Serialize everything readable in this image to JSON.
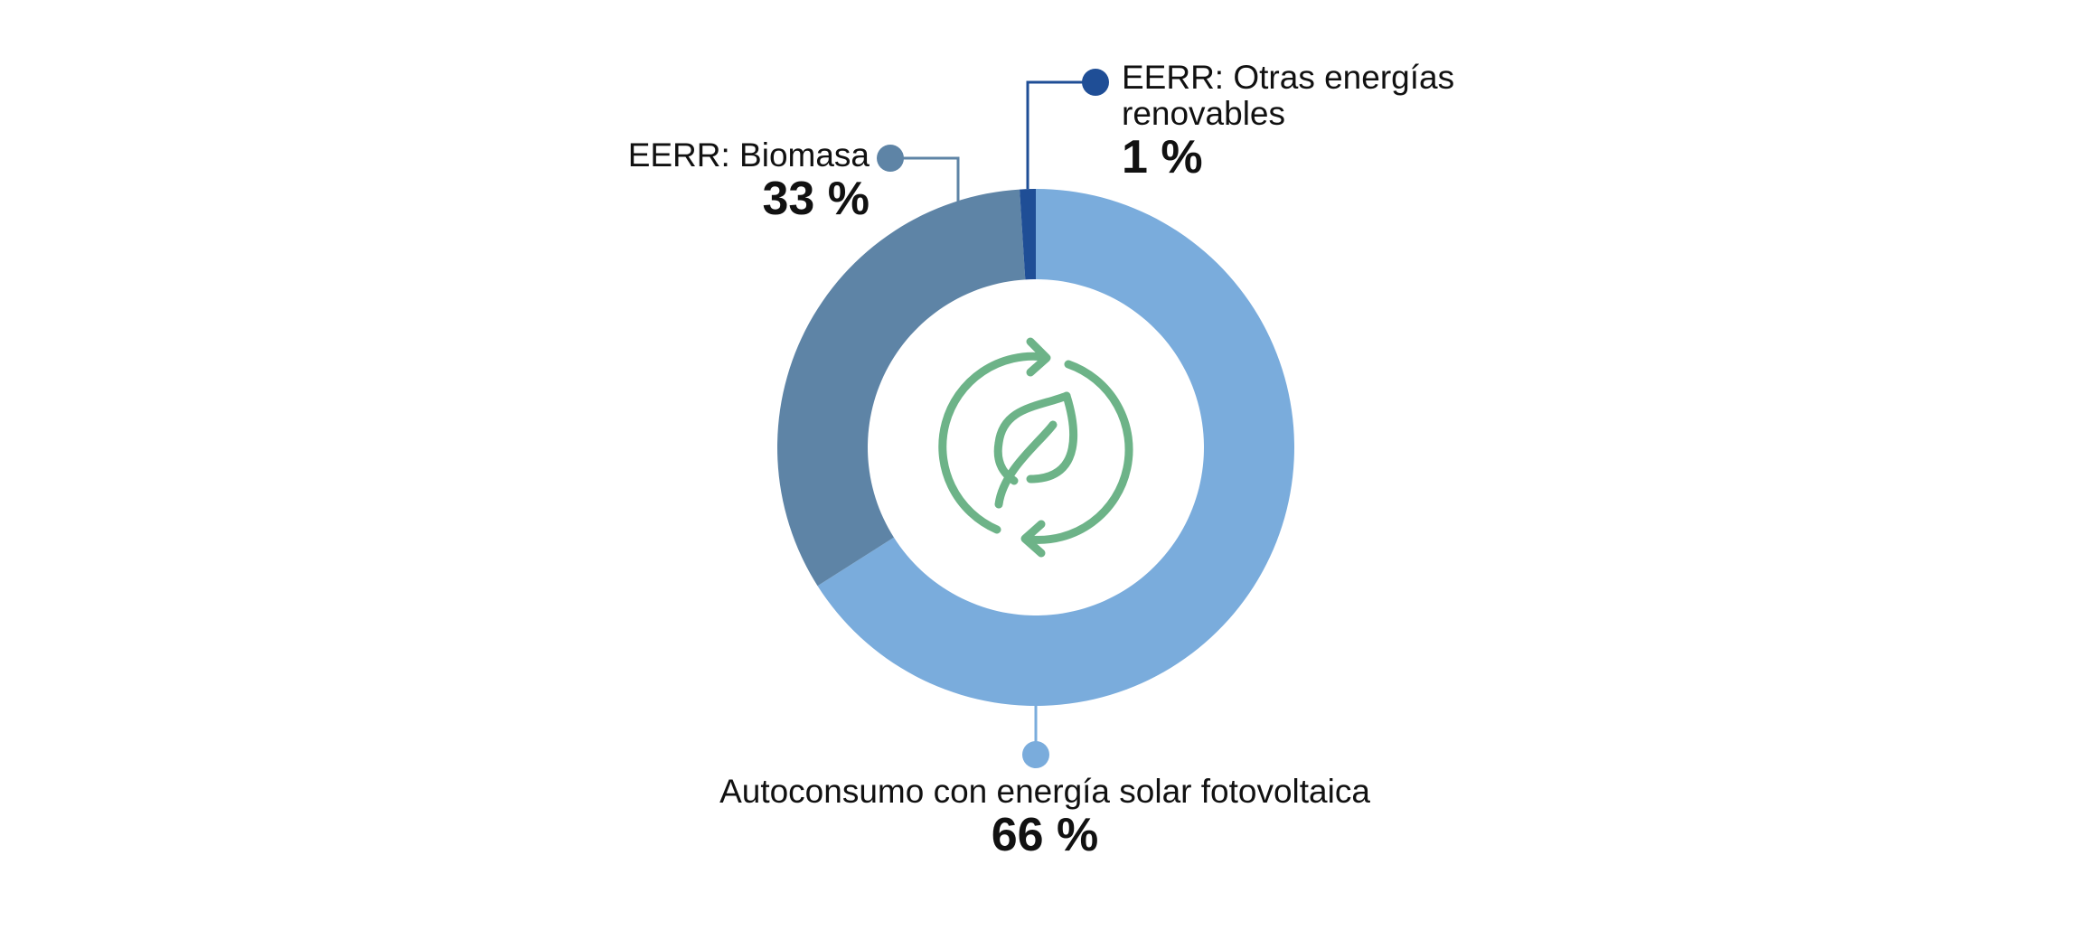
{
  "chart_data": {
    "type": "donut",
    "categories": [
      "Autoconsumo con energía solar fotovoltaica",
      "EERR: Biomasa",
      "EERR: Otras energías renovables"
    ],
    "values": [
      66,
      33,
      1
    ],
    "value_labels": [
      "66 %",
      "33 %",
      "1 %"
    ],
    "colors": [
      "#7aacdc",
      "#5e84a6",
      "#1f4e96"
    ]
  }
}
